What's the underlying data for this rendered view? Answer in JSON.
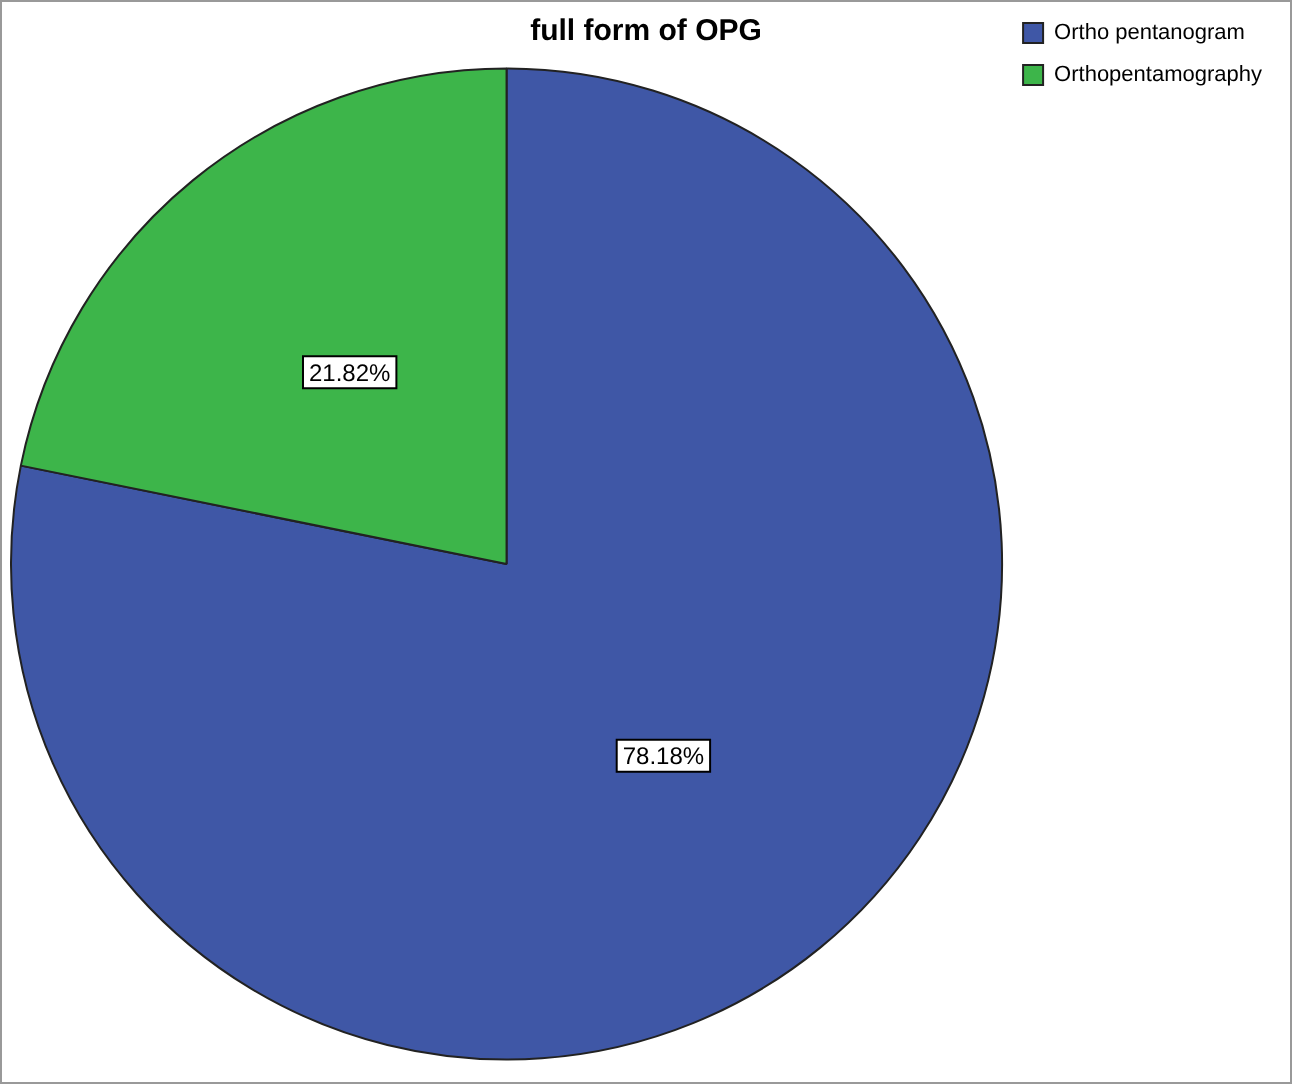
{
  "chart_data": {
    "type": "pie",
    "title": "full form of OPG",
    "categories": [
      "Ortho pentanogram",
      "Orthopentamography"
    ],
    "values": [
      78.18,
      21.82
    ],
    "colors": [
      "#3f57a6",
      "#3db54a"
    ],
    "value_labels": [
      "78.18%",
      "21.82%"
    ],
    "legend": "top right"
  }
}
